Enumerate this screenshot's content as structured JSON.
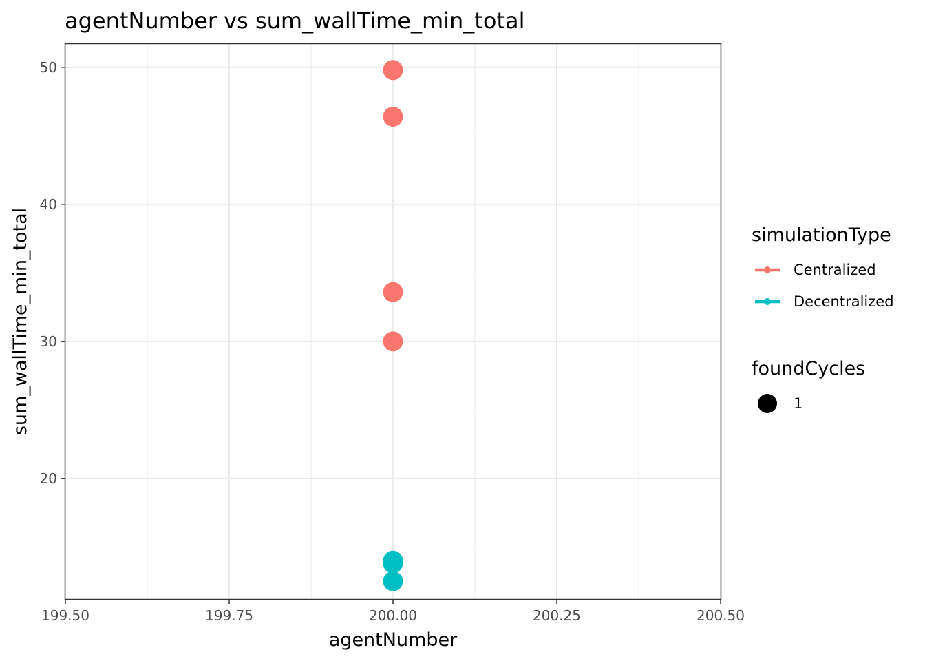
{
  "chart_data": {
    "type": "scatter",
    "title": "agentNumber  vs  sum_wallTime_min_total",
    "xlabel": "agentNumber",
    "ylabel": "sum_wallTime_min_total",
    "xlim": [
      199.5,
      200.5
    ],
    "ylim": [
      11.2,
      51.7
    ],
    "x_ticks": [
      "199.50",
      "199.75",
      "200.00",
      "200.25",
      "200.50"
    ],
    "y_ticks": [
      "20",
      "30",
      "40",
      "50"
    ],
    "x_tick_values": [
      199.5,
      199.75,
      200.0,
      200.25,
      200.5
    ],
    "y_tick_values": [
      20,
      30,
      40,
      50
    ],
    "grid": true,
    "legend_position": "right",
    "series": [
      {
        "name": "Centralized",
        "color": "#F8766D",
        "points": [
          {
            "x": 200,
            "y": 49.8
          },
          {
            "x": 200,
            "y": 46.4
          },
          {
            "x": 200,
            "y": 33.6
          },
          {
            "x": 200,
            "y": 30.0
          }
        ]
      },
      {
        "name": "Decentralized",
        "color": "#00BFC4",
        "points": [
          {
            "x": 200,
            "y": 14.0
          },
          {
            "x": 200,
            "y": 13.8
          },
          {
            "x": 200,
            "y": 12.5
          }
        ]
      }
    ],
    "legends": [
      {
        "title": "simulationType",
        "entries": [
          "Centralized",
          "Decentralized"
        ]
      },
      {
        "title": "foundCycles",
        "entries": [
          "1"
        ]
      }
    ]
  }
}
